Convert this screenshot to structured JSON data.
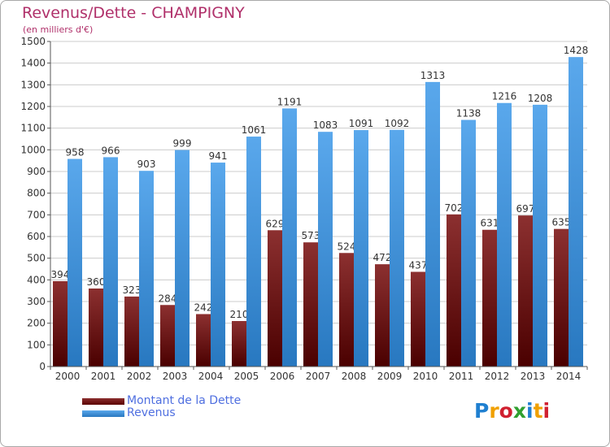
{
  "header": {
    "title": "Revenus/Dette - CHAMPIGNY",
    "subtitle": "(en milliers d'€)"
  },
  "colors": {
    "title": "#b0306a",
    "dette_dark": "#5a0000",
    "dette_light": "#8c3030",
    "revenus_dark": "#2878c0",
    "revenus_light": "#5aa8ec",
    "grid": "#cccccc",
    "legend_text": "#4f6fe0"
  },
  "chart_data": {
    "type": "bar",
    "categories": [
      "2000",
      "2001",
      "2002",
      "2003",
      "2004",
      "2005",
      "2006",
      "2007",
      "2008",
      "2009",
      "2010",
      "2011",
      "2012",
      "2013",
      "2014"
    ],
    "series": [
      {
        "name": "Montant de la Dette",
        "values": [
          394,
          360,
          323,
          284,
          242,
          210,
          629,
          573,
          524,
          472,
          437,
          702,
          631,
          697,
          635
        ]
      },
      {
        "name": "Revenus",
        "values": [
          958,
          966,
          903,
          999,
          941,
          1061,
          1191,
          1083,
          1091,
          1092,
          1313,
          1138,
          1216,
          1208,
          1428
        ]
      }
    ],
    "ylim": [
      0,
      1500
    ],
    "yticks": [
      0,
      100,
      200,
      300,
      400,
      500,
      600,
      700,
      800,
      900,
      1000,
      1100,
      1200,
      1300,
      1400,
      1500
    ],
    "grid": true,
    "legend_position": "bottom-left"
  },
  "legend": {
    "items": [
      {
        "label": "Montant de la Dette",
        "color_dark": "#5a0000",
        "color_light": "#8c3030"
      },
      {
        "label": "Revenus",
        "color_dark": "#2878c0",
        "color_light": "#5aa8ec"
      }
    ]
  },
  "logo": {
    "letters": [
      {
        "ch": "P",
        "color": "#1f7fd0"
      },
      {
        "ch": "r",
        "color": "#f0a000"
      },
      {
        "ch": "o",
        "color": "#d02030"
      },
      {
        "ch": "x",
        "color": "#30a030"
      },
      {
        "ch": "i",
        "color": "#1f7fd0"
      },
      {
        "ch": "t",
        "color": "#f0a000"
      },
      {
        "ch": "i",
        "color": "#d02030"
      }
    ]
  }
}
